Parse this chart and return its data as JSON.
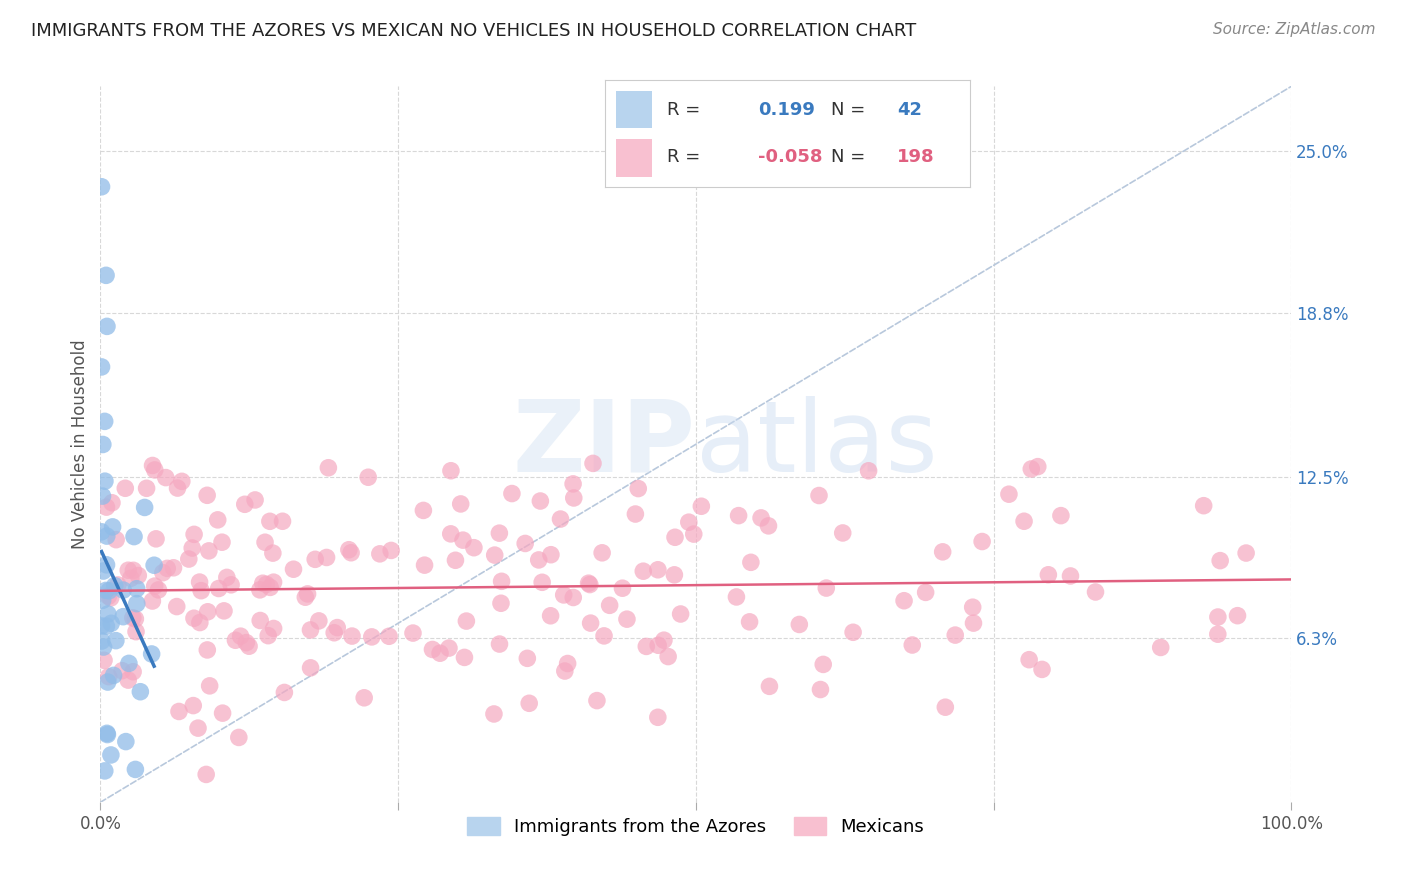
{
  "title": "IMMIGRANTS FROM THE AZORES VS MEXICAN NO VEHICLES IN HOUSEHOLD CORRELATION CHART",
  "source": "Source: ZipAtlas.com",
  "ylabel": "No Vehicles in Household",
  "ytick_vals": [
    0.063,
    0.125,
    0.188,
    0.25
  ],
  "ytick_labels": [
    "6.3%",
    "12.5%",
    "18.8%",
    "25.0%"
  ],
  "watermark_zip": "ZIP",
  "watermark_atlas": "atlas",
  "background_color": "#ffffff",
  "grid_color": "#d8d8d8",
  "azores_dot_color": "#90bce8",
  "mexican_dot_color": "#f5a8c0",
  "azores_line_color": "#3a7abf",
  "mexican_line_color": "#e06080",
  "diagonal_color": "#b8c8dc",
  "legend_border_color": "#cccccc",
  "R_az": "0.199",
  "N_az": "42",
  "R_mex": "-0.058",
  "N_mex": "198",
  "az_label": "Immigrants from the Azores",
  "mex_label": "Mexicans",
  "text_blue": "#3a7abf",
  "text_pink": "#e06080",
  "text_dark": "#222222",
  "text_gray": "#888888",
  "title_fontsize": 13,
  "source_fontsize": 11,
  "tick_fontsize": 12,
  "legend_fontsize": 13,
  "az_seed": 7,
  "mex_seed": 42,
  "xlim": [
    0.0,
    1.0
  ],
  "ylim": [
    0.0,
    0.275
  ]
}
